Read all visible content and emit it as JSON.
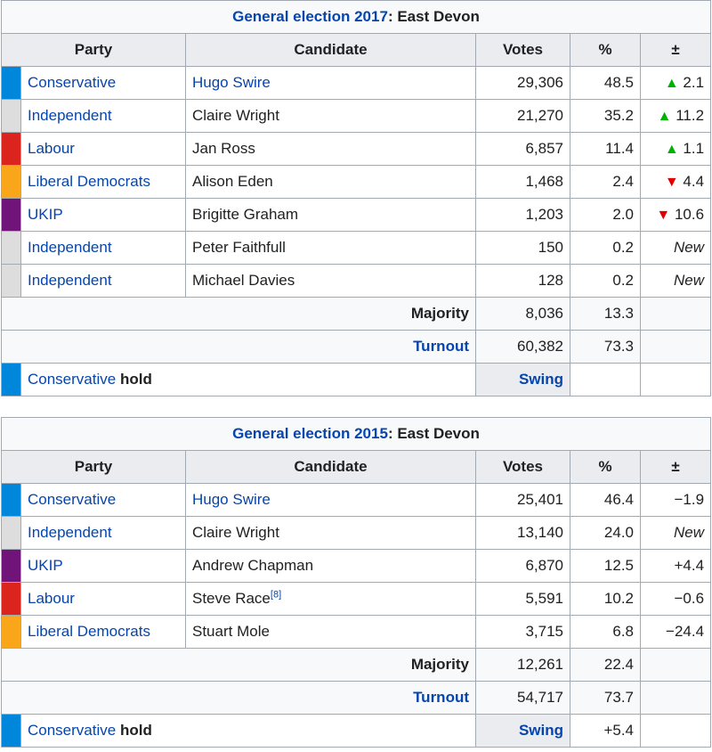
{
  "colors": {
    "conservative": "#0087dc",
    "independent": "#dddddd",
    "labour": "#dc241f",
    "libdem": "#faa61a",
    "ukip": "#70147a",
    "link": "#0645ad",
    "up_arrow": "#00b300",
    "down_arrow": "#e00000"
  },
  "icons": {
    "up": "▲",
    "down": "▼"
  },
  "t2017": {
    "caption_link": "General election 2017",
    "caption_rest": ": East Devon",
    "headers": {
      "party": "Party",
      "candidate": "Candidate",
      "votes": "Votes",
      "pct": "%",
      "change": "±"
    },
    "rows": [
      {
        "party": "Conservative",
        "candidate": "Hugo Swire",
        "votes": "29,306",
        "pct": "48.5",
        "change": "2.1",
        "dir": "up"
      },
      {
        "party": "Independent",
        "candidate": "Claire Wright",
        "votes": "21,270",
        "pct": "35.2",
        "change": "11.2",
        "dir": "up"
      },
      {
        "party": "Labour",
        "candidate": "Jan Ross",
        "votes": "6,857",
        "pct": "11.4",
        "change": "1.1",
        "dir": "up"
      },
      {
        "party": "Liberal Democrats",
        "candidate": "Alison Eden",
        "votes": "1,468",
        "pct": "2.4",
        "change": "4.4",
        "dir": "down"
      },
      {
        "party": "UKIP",
        "candidate": "Brigitte Graham",
        "votes": "1,203",
        "pct": "2.0",
        "change": "10.6",
        "dir": "down"
      },
      {
        "party": "Independent",
        "candidate": "Peter Faithfull",
        "votes": "150",
        "pct": "0.2",
        "change": "New"
      },
      {
        "party": "Independent",
        "candidate": "Michael Davies",
        "votes": "128",
        "pct": "0.2",
        "change": "New"
      }
    ],
    "majority": {
      "label": "Majority",
      "votes": "8,036",
      "pct": "13.3"
    },
    "turnout": {
      "label": "Turnout",
      "votes": "60,382",
      "pct": "73.3"
    },
    "hold": {
      "party": "Conservative",
      "word": "hold",
      "swing": "Swing",
      "swing_value": ""
    }
  },
  "t2015": {
    "caption_link": "General election 2015",
    "caption_rest": ": East Devon",
    "headers": {
      "party": "Party",
      "candidate": "Candidate",
      "votes": "Votes",
      "pct": "%",
      "change": "±"
    },
    "rows": [
      {
        "party": "Conservative",
        "candidate": "Hugo Swire",
        "votes": "25,401",
        "pct": "46.4",
        "change": "−1.9"
      },
      {
        "party": "Independent",
        "candidate": "Claire Wright",
        "votes": "13,140",
        "pct": "24.0",
        "change": "New"
      },
      {
        "party": "UKIP",
        "candidate": "Andrew Chapman",
        "votes": "6,870",
        "pct": "12.5",
        "change": "+4.4"
      },
      {
        "party": "Labour",
        "candidate": "Steve Race",
        "ref": "[8]",
        "votes": "5,591",
        "pct": "10.2",
        "change": "−0.6"
      },
      {
        "party": "Liberal Democrats",
        "candidate": "Stuart Mole",
        "votes": "3,715",
        "pct": "6.8",
        "change": "−24.4"
      }
    ],
    "majority": {
      "label": "Majority",
      "votes": "12,261",
      "pct": "22.4"
    },
    "turnout": {
      "label": "Turnout",
      "votes": "54,717",
      "pct": "73.7"
    },
    "hold": {
      "party": "Conservative",
      "word": "hold",
      "swing": "Swing",
      "swing_value": "+5.4"
    }
  }
}
